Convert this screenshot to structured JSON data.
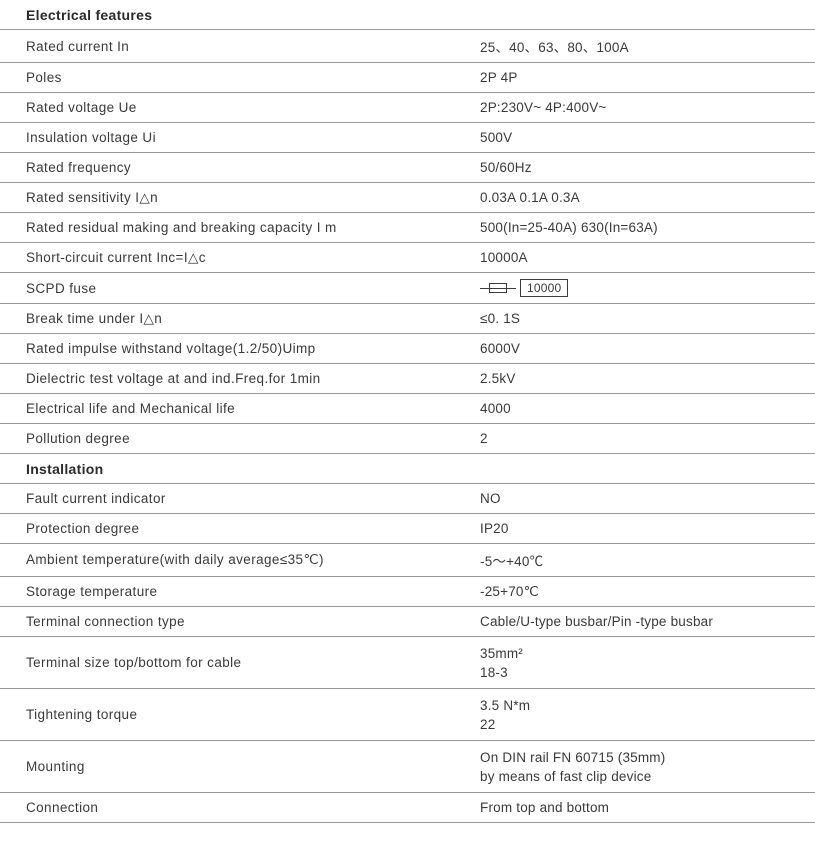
{
  "sections": [
    {
      "header": "Electrical features",
      "rows": [
        {
          "label": "Rated current In",
          "value": "25、40、63、80、100A"
        },
        {
          "label": "Poles",
          "value": "2P  4P"
        },
        {
          "label": "Rated voltage Ue",
          "value": "2P:230V~   4P:400V~"
        },
        {
          "label": "Insulation voltage Ui",
          "value": "500V"
        },
        {
          "label": "Rated frequency",
          "value": "50/60Hz"
        },
        {
          "label": "Rated sensitivity I△n",
          "value": "0.03A  0.1A  0.3A"
        },
        {
          "label": "Rated residual making and breaking capacity I m",
          "value": "500(In=25-40A)  630(In=63A)"
        },
        {
          "label": "Short-circuit current Inc=I△c",
          "value": "10000A"
        },
        {
          "label": "SCPD fuse",
          "value": "",
          "scpd": "10000"
        },
        {
          "label": "Break time under I△n",
          "value": "≤0. 1S"
        },
        {
          "label": "Rated impulse withstand voltage(1.2/50)Uimp",
          "value": "6000V"
        },
        {
          "label": "Dielectric test voltage at and ind.Freq.for 1min",
          "value": "2.5kV"
        },
        {
          "label": "Electrical life and Mechanical life",
          "value": "4000"
        },
        {
          "label": "Pollution degree",
          "value": "2"
        }
      ]
    },
    {
      "header": "Installation",
      "rows": [
        {
          "label": "Fault current indicator",
          "value": "NO"
        },
        {
          "label": "Protection degree",
          "value": "IP20"
        },
        {
          "label": "Ambient temperature(with daily average≤35℃)",
          "value": "-5～+40℃"
        },
        {
          "label": "Storage temperature",
          "value": "-25+70℃"
        },
        {
          "label": "Terminal connection type",
          "value": "Cable/U-type busbar/Pin -type busbar"
        },
        {
          "label": "Terminal size top/bottom for cable",
          "lines": [
            "35mm²",
            "18-3"
          ],
          "tall": true
        },
        {
          "label": "Tightening torque",
          "lines": [
            "3.5  N*m",
            "22"
          ],
          "tall": true
        },
        {
          "label": "Mounting",
          "lines": [
            "On DIN rail FN 60715 (35mm)",
            "by means of fast clip device"
          ],
          "tall": true
        },
        {
          "label": "Connection",
          "value": "From  top and bottom"
        }
      ]
    }
  ],
  "colors": {
    "text": "#3a3a3a",
    "border": "#999999",
    "bg": "#ffffff"
  },
  "font": {
    "family": "Arial",
    "size_label": 13.5,
    "size_value": 13.5,
    "size_header": 14
  }
}
